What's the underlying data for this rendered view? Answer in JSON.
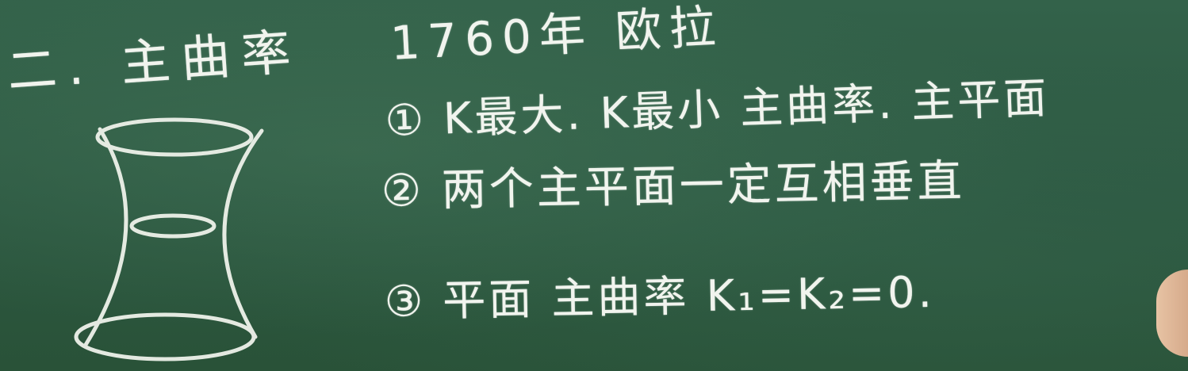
{
  "board": {
    "background": "#2f5b42",
    "chalk_color": "#f1f4ee"
  },
  "section_title": "二. 主曲率",
  "history_note": "1760年 欧拉",
  "points": [
    "① K最大. K最小 主曲率. 主平面",
    "② 两个主平面一定互相垂直",
    "③ 平面 主曲率 K₁=K₂=0."
  ],
  "figure": {
    "subject": "hyperboloid-sketch-icon"
  }
}
